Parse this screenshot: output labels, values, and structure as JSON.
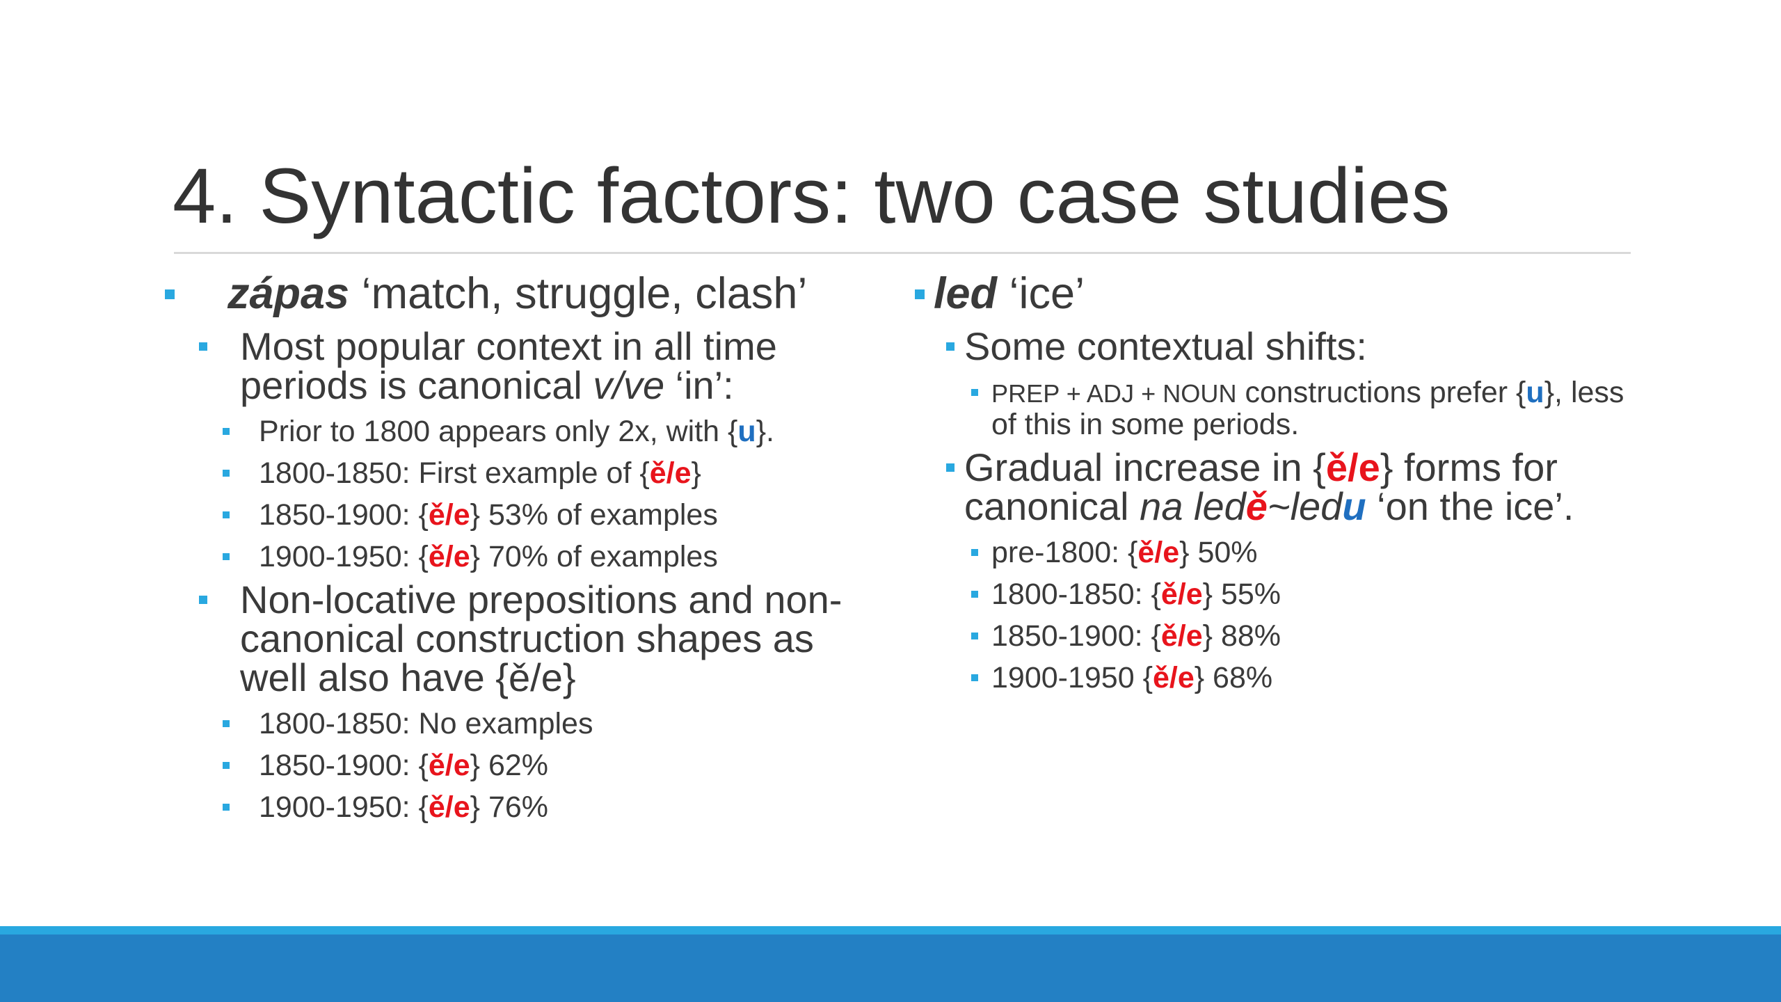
{
  "title": "4. Syntactic factors: two case studies",
  "columns": [
    {
      "items": [
        {
          "level": 1,
          "runs": [
            {
              "text": "zápas",
              "bold": true,
              "italic": true
            },
            {
              "text": " ‘match, struggle, clash’"
            }
          ]
        },
        {
          "level": 2,
          "runs": [
            {
              "text": "Most popular context in all time periods is canonical "
            },
            {
              "text": "v/ve",
              "italic": true
            },
            {
              "text": " ‘in’:"
            }
          ]
        },
        {
          "level": 3,
          "runs": [
            {
              "text": "Prior to 1800 appears only 2x, with {"
            },
            {
              "text": "u",
              "bold": true,
              "color": "#1f6fc0"
            },
            {
              "text": "}."
            }
          ]
        },
        {
          "level": 3,
          "runs": [
            {
              "text": "1800-1850: First example of {"
            },
            {
              "text": "ě/e",
              "bold": true,
              "color": "#e8141c"
            },
            {
              "text": "}"
            }
          ]
        },
        {
          "level": 3,
          "runs": [
            {
              "text": "1850-1900: {"
            },
            {
              "text": "ě/e",
              "bold": true,
              "color": "#e8141c"
            },
            {
              "text": "} 53% of examples"
            }
          ]
        },
        {
          "level": 3,
          "runs": [
            {
              "text": "1900-1950: {"
            },
            {
              "text": "ě/e",
              "bold": true,
              "color": "#e8141c"
            },
            {
              "text": "} 70% of examples"
            }
          ]
        },
        {
          "level": 2,
          "runs": [
            {
              "text": "Non-locative prepositions and non-canonical construction shapes as well also have {ě/e}"
            }
          ]
        },
        {
          "level": 3,
          "runs": [
            {
              "text": "1800-1850: No examples"
            }
          ]
        },
        {
          "level": 3,
          "runs": [
            {
              "text": "1850-1900: {"
            },
            {
              "text": "ě/e",
              "bold": true,
              "color": "#e8141c"
            },
            {
              "text": "} 62%"
            }
          ]
        },
        {
          "level": 3,
          "runs": [
            {
              "text": "1900-1950: {"
            },
            {
              "text": "ě/e",
              "bold": true,
              "color": "#e8141c"
            },
            {
              "text": "} 76%"
            }
          ]
        }
      ]
    },
    {
      "items": [
        {
          "level": 1,
          "runs": [
            {
              "text": "led",
              "bold": true,
              "italic": true
            },
            {
              "text": " ‘ice’"
            }
          ]
        },
        {
          "level": 2,
          "runs": [
            {
              "text": "Some contextual shifts:"
            }
          ]
        },
        {
          "level": 3,
          "runs": [
            {
              "text": "PREP + ADJ + NOUN",
              "small": true
            },
            {
              "text": " constructions prefer {"
            },
            {
              "text": "u",
              "bold": true,
              "color": "#1f6fc0"
            },
            {
              "text": "}, less of this in some periods."
            }
          ]
        },
        {
          "level": 2,
          "runs": [
            {
              "text": "Gradual increase in {"
            },
            {
              "text": "ě/e",
              "bold": true,
              "color": "#e8141c"
            },
            {
              "text": "} forms for canonical "
            },
            {
              "text": "na led",
              "italic": true
            },
            {
              "text": "ě",
              "italic": true,
              "bold": true,
              "color": "#e8141c"
            },
            {
              "text": "~led",
              "italic": true
            },
            {
              "text": "u",
              "italic": true,
              "bold": true,
              "color": "#1f6fc0"
            },
            {
              "text": " ‘on the ice’."
            }
          ]
        },
        {
          "level": 3,
          "runs": [
            {
              "text": "pre-1800: {"
            },
            {
              "text": "ě/e",
              "bold": true,
              "color": "#e8141c"
            },
            {
              "text": "} 50%"
            }
          ]
        },
        {
          "level": 3,
          "runs": [
            {
              "text": "1800-1850: {"
            },
            {
              "text": "ě/e",
              "bold": true,
              "color": "#e8141c"
            },
            {
              "text": "} 55%"
            }
          ]
        },
        {
          "level": 3,
          "runs": [
            {
              "text": "1850-1900: {"
            },
            {
              "text": "ě/e",
              "bold": true,
              "color": "#e8141c"
            },
            {
              "text": "} 88%"
            }
          ]
        },
        {
          "level": 3,
          "runs": [
            {
              "text": "1900-1950 {"
            },
            {
              "text": "ě/e",
              "bold": true,
              "color": "#e8141c"
            },
            {
              "text": "} 68%"
            }
          ]
        }
      ]
    }
  ]
}
